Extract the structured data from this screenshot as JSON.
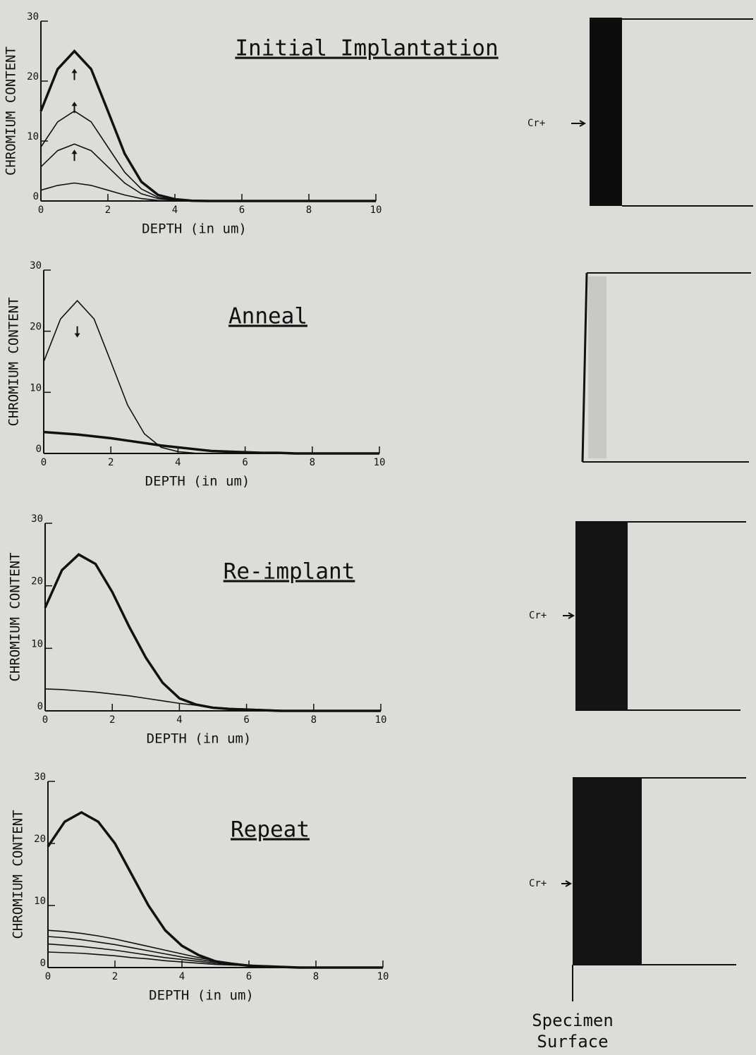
{
  "chart_data": [
    {
      "type": "line",
      "title": "Initial Implantation",
      "x_label": "DEPTH (in um)",
      "y_label": "CHROMIUM CONTENT",
      "xlim": [
        0,
        10
      ],
      "ylim": [
        0,
        30
      ],
      "xticks": [
        0,
        2,
        4,
        6,
        8,
        10
      ],
      "yticks": [
        0,
        10,
        20,
        30
      ],
      "x": [
        0,
        0.5,
        1,
        1.5,
        2,
        2.5,
        3,
        3.5,
        4,
        4.5,
        5,
        5.5,
        6,
        6.5,
        7,
        7.5,
        8,
        8.5,
        9,
        9.5,
        10
      ],
      "series": [
        {
          "color": "#111111",
          "values": [
            15,
            22,
            25,
            22,
            15,
            7.9,
            3.2,
            1,
            0.3,
            0.05,
            0,
            0,
            0,
            0,
            0,
            0,
            0,
            0,
            0,
            0,
            0
          ]
        },
        {
          "color": "#111111",
          "values": [
            9,
            13.2,
            15,
            13.2,
            9,
            4.8,
            2,
            0.6,
            0.2,
            0,
            0,
            0,
            0,
            0,
            0,
            0,
            0,
            0,
            0,
            0,
            0
          ]
        },
        {
          "color": "#111111",
          "values": [
            5.7,
            8.4,
            9.5,
            8.4,
            5.7,
            3,
            1.2,
            0.4,
            0.1,
            0,
            0,
            0,
            0,
            0,
            0,
            0,
            0,
            0,
            0,
            0,
            0
          ]
        },
        {
          "color": "#111111",
          "values": [
            1.8,
            2.6,
            3,
            2.6,
            1.8,
            1,
            0.4,
            0.1,
            0,
            0,
            0,
            0,
            0,
            0,
            0,
            0,
            0,
            0,
            0,
            0,
            0
          ]
        }
      ]
    },
    {
      "type": "line",
      "title": "Anneal",
      "x_label": "DEPTH (in um)",
      "y_label": "CHROMIUM CONTENT",
      "xlim": [
        0,
        10
      ],
      "ylim": [
        0,
        30
      ],
      "xticks": [
        0,
        2,
        4,
        6,
        8,
        10
      ],
      "yticks": [
        0,
        10,
        20,
        30
      ],
      "x": [
        0,
        0.5,
        1,
        1.5,
        2,
        2.5,
        3,
        3.5,
        4,
        4.5,
        5,
        5.5,
        6,
        6.5,
        7,
        7.5,
        8,
        8.5,
        9,
        9.5,
        10
      ],
      "series": [
        {
          "color": "#111111",
          "values": [
            15,
            22,
            25,
            22,
            15,
            7.9,
            3.2,
            1,
            0.3,
            0.05,
            0,
            0,
            0,
            0,
            0,
            0,
            0,
            0,
            0,
            0,
            0
          ]
        },
        {
          "color": "#111111",
          "values": [
            3.5,
            3.3,
            3.1,
            2.8,
            2.5,
            2.1,
            1.7,
            1.3,
            1,
            0.7,
            0.4,
            0.3,
            0.2,
            0.1,
            0.1,
            0,
            0,
            0,
            0,
            0,
            0
          ]
        }
      ]
    },
    {
      "type": "line",
      "title": "Re-implant",
      "x_label": "DEPTH (in um)",
      "y_label": "CHROMIUM CONTENT",
      "xlim": [
        0,
        10
      ],
      "ylim": [
        0,
        30
      ],
      "xticks": [
        0,
        2,
        4,
        6,
        8,
        10
      ],
      "yticks": [
        0,
        10,
        20,
        30
      ],
      "x": [
        0,
        0.5,
        1,
        1.5,
        2,
        2.5,
        3,
        3.5,
        4,
        4.5,
        5,
        5.5,
        6,
        6.5,
        7,
        7.5,
        8,
        8.5,
        9,
        9.5,
        10
      ],
      "series": [
        {
          "color": "#111111",
          "values": [
            16.5,
            22.5,
            25,
            23.5,
            19,
            13.5,
            8.5,
            4.5,
            2,
            1,
            0.5,
            0.3,
            0.2,
            0.1,
            0,
            0,
            0,
            0,
            0,
            0,
            0
          ]
        },
        {
          "color": "#111111",
          "values": [
            3.5,
            3.4,
            3.2,
            3,
            2.7,
            2.4,
            2,
            1.6,
            1.2,
            0.9,
            0.6,
            0.4,
            0.3,
            0.2,
            0.1,
            0,
            0,
            0,
            0,
            0,
            0
          ]
        }
      ]
    },
    {
      "type": "line",
      "title": "Repeat",
      "x_label": "DEPTH (in um)",
      "y_label": "CHROMIUM CONTENT",
      "xlim": [
        0,
        10
      ],
      "ylim": [
        0,
        30
      ],
      "xticks": [
        0,
        2,
        4,
        6,
        8,
        10
      ],
      "yticks": [
        0,
        10,
        20,
        30
      ],
      "x": [
        0,
        0.5,
        1,
        1.5,
        2,
        2.5,
        3,
        3.5,
        4,
        4.5,
        5,
        5.5,
        6,
        6.5,
        7,
        7.5,
        8,
        8.5,
        9,
        9.5,
        10
      ],
      "series": [
        {
          "color": "#111111",
          "values": [
            19.5,
            23.5,
            25,
            23.5,
            20,
            15,
            10,
            6,
            3.5,
            2,
            1,
            0.6,
            0.3,
            0.2,
            0.1,
            0,
            0,
            0,
            0,
            0,
            0
          ]
        },
        {
          "color": "#111111",
          "values": [
            6,
            5.8,
            5.5,
            5.1,
            4.6,
            4,
            3.4,
            2.8,
            2.2,
            1.6,
            1.1,
            0.7,
            0.4,
            0.2,
            0.1,
            0,
            0,
            0,
            0,
            0,
            0
          ]
        },
        {
          "color": "#111111",
          "values": [
            5,
            4.8,
            4.5,
            4.1,
            3.7,
            3.2,
            2.7,
            2.2,
            1.7,
            1.3,
            0.9,
            0.6,
            0.4,
            0.2,
            0.1,
            0,
            0,
            0,
            0,
            0,
            0
          ]
        },
        {
          "color": "#111111",
          "values": [
            3.8,
            3.6,
            3.4,
            3.1,
            2.8,
            2.4,
            2,
            1.6,
            1.3,
            1,
            0.7,
            0.5,
            0.3,
            0.2,
            0.1,
            0,
            0,
            0,
            0,
            0,
            0
          ]
        },
        {
          "color": "#111111",
          "values": [
            2.5,
            2.4,
            2.3,
            2.1,
            1.9,
            1.6,
            1.4,
            1.1,
            0.9,
            0.7,
            0.5,
            0.4,
            0.3,
            0.2,
            0.1,
            0,
            0,
            0,
            0,
            0,
            0
          ]
        }
      ]
    }
  ],
  "diagram": {
    "labels": [
      "Cr+",
      "Cr+",
      "Cr+"
    ],
    "caption": [
      "Specimen",
      "Surface"
    ]
  }
}
